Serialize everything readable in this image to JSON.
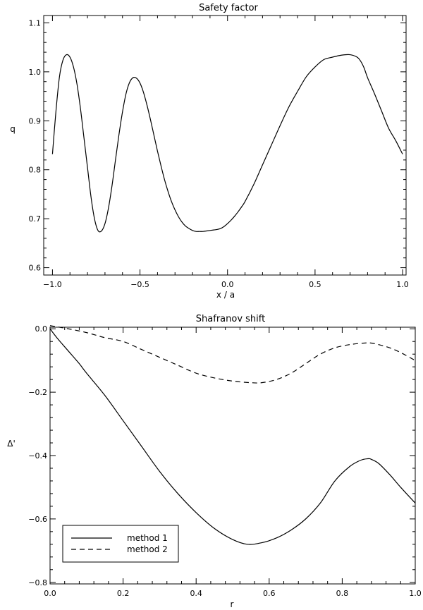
{
  "chart_data": [
    {
      "type": "line",
      "title": "Safety factor",
      "xlabel": "x / a",
      "ylabel": "q",
      "xlim": [
        -1.05,
        1.02
      ],
      "ylim": [
        0.585,
        1.115
      ],
      "xticks": [
        -1.0,
        -0.5,
        0.0,
        0.5,
        1.0
      ],
      "xtick_labels": [
        "−1.0",
        "−0.5",
        "0.0",
        "0.5",
        "1.0"
      ],
      "yticks": [
        0.6,
        0.7,
        0.8,
        0.9,
        1.0,
        1.1
      ],
      "ytick_labels": [
        "0.6",
        "0.7",
        "0.8",
        "0.9",
        "1.0",
        "1.1"
      ],
      "grid": false,
      "series": [
        {
          "style": "solid",
          "x": [
            -1.0,
            -0.98,
            -0.96,
            -0.94,
            -0.92,
            -0.9,
            -0.88,
            -0.86,
            -0.84,
            -0.82,
            -0.8,
            -0.78,
            -0.76,
            -0.74,
            -0.72,
            -0.7,
            -0.68,
            -0.66,
            -0.64,
            -0.62,
            -0.6,
            -0.58,
            -0.56,
            -0.54,
            -0.52,
            -0.5,
            -0.48,
            -0.46,
            -0.44,
            -0.42,
            -0.4,
            -0.38,
            -0.36,
            -0.34,
            -0.32,
            -0.3,
            -0.28,
            -0.26,
            -0.24,
            -0.22,
            -0.2,
            -0.18,
            -0.16,
            -0.14,
            -0.12,
            -0.1,
            -0.08,
            -0.06,
            -0.04,
            -0.02,
            0.0,
            0.02,
            0.04,
            0.06,
            0.08,
            0.1,
            0.15,
            0.2,
            0.25,
            0.3,
            0.35,
            0.4,
            0.45,
            0.5,
            0.55,
            0.6,
            0.65,
            0.7,
            0.74,
            0.76,
            0.78,
            0.8,
            0.84,
            0.88,
            0.92,
            0.96,
            1.0
          ],
          "y": [
            0.832,
            0.92,
            0.99,
            1.024,
            1.035,
            1.03,
            1.01,
            0.975,
            0.925,
            0.865,
            0.805,
            0.745,
            0.7,
            0.676,
            0.675,
            0.69,
            0.722,
            0.767,
            0.82,
            0.872,
            0.918,
            0.955,
            0.978,
            0.988,
            0.987,
            0.977,
            0.958,
            0.932,
            0.902,
            0.87,
            0.838,
            0.808,
            0.78,
            0.756,
            0.735,
            0.718,
            0.704,
            0.693,
            0.685,
            0.68,
            0.676,
            0.674,
            0.674,
            0.674,
            0.675,
            0.676,
            0.677,
            0.678,
            0.68,
            0.684,
            0.69,
            0.697,
            0.705,
            0.714,
            0.724,
            0.735,
            0.77,
            0.81,
            0.85,
            0.89,
            0.928,
            0.96,
            0.99,
            1.01,
            1.025,
            1.03,
            1.034,
            1.035,
            1.03,
            1.022,
            1.008,
            0.988,
            0.955,
            0.92,
            0.885,
            0.86,
            0.832
          ]
        }
      ]
    },
    {
      "type": "line",
      "title": "Shafranov shift",
      "xlabel": "r",
      "ylabel": "Δ'",
      "xlim": [
        0.0,
        1.0
      ],
      "ylim": [
        -0.805,
        0.005
      ],
      "xticks": [
        0.0,
        0.2,
        0.4,
        0.6,
        0.8,
        1.0
      ],
      "xtick_labels": [
        "0.0",
        "0.2",
        "0.4",
        "0.6",
        "0.8",
        "1.0"
      ],
      "yticks": [
        0.0,
        -0.2,
        -0.4,
        -0.6,
        -0.8
      ],
      "ytick_labels": [
        "0.0",
        "−0.2",
        "−0.4",
        "−0.6",
        "−0.8"
      ],
      "grid": false,
      "legend_position": "bottom-left",
      "series": [
        {
          "name": "method 1",
          "style": "solid",
          "x": [
            0.0,
            0.02,
            0.05,
            0.08,
            0.1,
            0.15,
            0.2,
            0.25,
            0.3,
            0.35,
            0.4,
            0.45,
            0.5,
            0.54,
            0.58,
            0.62,
            0.66,
            0.7,
            0.74,
            0.78,
            0.82,
            0.85,
            0.87,
            0.88,
            0.9,
            0.93,
            0.96,
            1.0
          ],
          "y": [
            0.0,
            -0.03,
            -0.07,
            -0.11,
            -0.14,
            -0.21,
            -0.29,
            -0.37,
            -0.45,
            -0.52,
            -0.58,
            -0.63,
            -0.665,
            -0.68,
            -0.675,
            -0.66,
            -0.635,
            -0.6,
            -0.55,
            -0.48,
            -0.435,
            -0.415,
            -0.41,
            -0.412,
            -0.425,
            -0.46,
            -0.5,
            -0.55
          ]
        },
        {
          "name": "method 2",
          "style": "dashed",
          "x": [
            0.0,
            0.05,
            0.1,
            0.15,
            0.2,
            0.25,
            0.3,
            0.35,
            0.4,
            0.45,
            0.5,
            0.55,
            0.58,
            0.62,
            0.66,
            0.7,
            0.74,
            0.78,
            0.82,
            0.86,
            0.88,
            0.9,
            0.93,
            0.96,
            1.0
          ],
          "y": [
            0.01,
            0.0,
            -0.012,
            -0.028,
            -0.04,
            -0.065,
            -0.09,
            -0.115,
            -0.14,
            -0.155,
            -0.165,
            -0.17,
            -0.17,
            -0.16,
            -0.14,
            -0.11,
            -0.08,
            -0.06,
            -0.05,
            -0.045,
            -0.045,
            -0.05,
            -0.06,
            -0.075,
            -0.1
          ]
        }
      ]
    }
  ]
}
